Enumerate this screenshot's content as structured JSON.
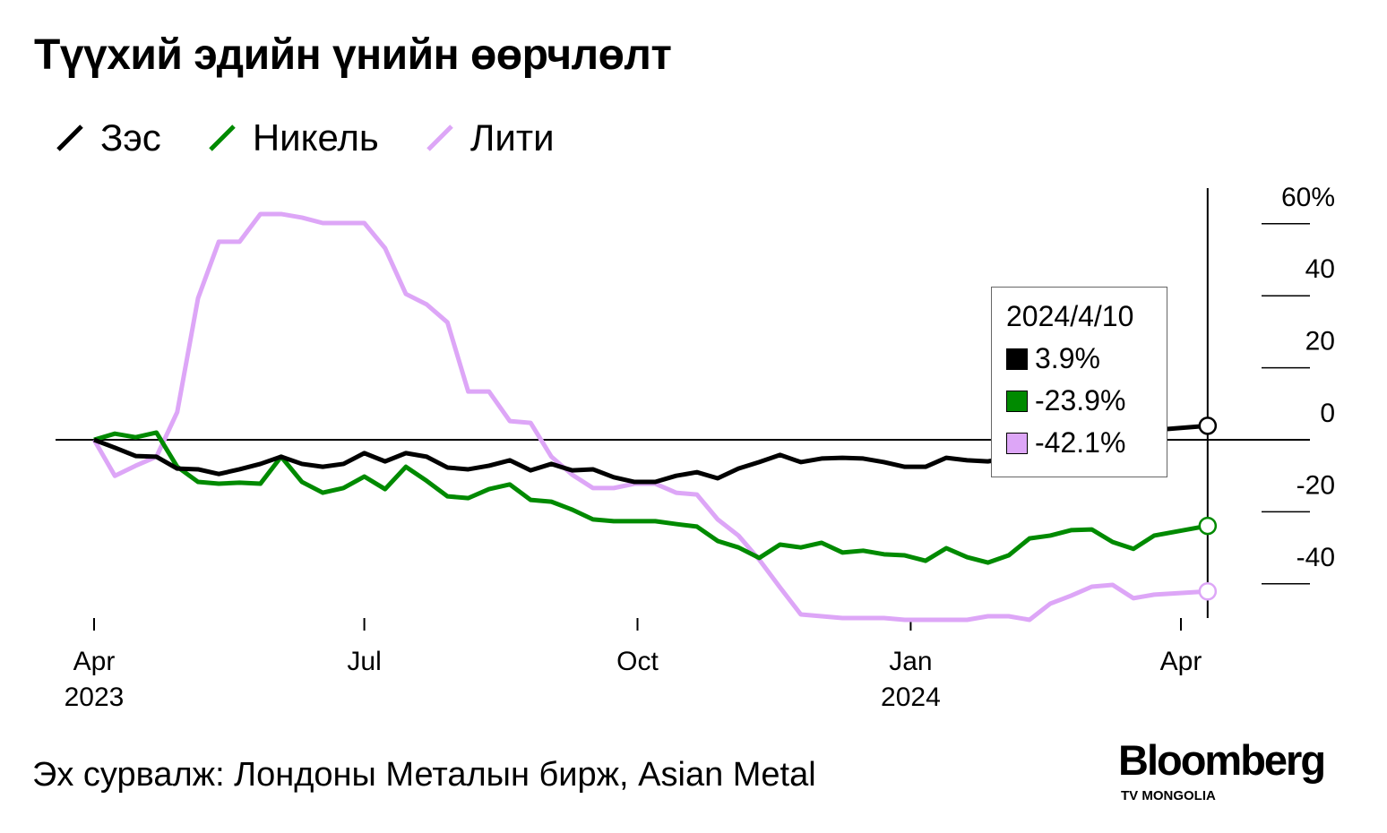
{
  "chart_data": {
    "type": "line",
    "title": "Түүхий эдийн үнийн өөрчлөлт",
    "ylabel": "",
    "xlabel": "",
    "ylim": [
      -50,
      62
    ],
    "y_ticks": [
      {
        "value": 60,
        "label": "60%"
      },
      {
        "value": 40,
        "label": "40"
      },
      {
        "value": 20,
        "label": "20"
      },
      {
        "value": 0,
        "label": "0"
      },
      {
        "value": -20,
        "label": "-20"
      },
      {
        "value": -40,
        "label": "-40"
      }
    ],
    "x_ticks": [
      {
        "date": "2023-04-01",
        "label": "Apr",
        "label2": "2023"
      },
      {
        "date": "2023-07-01",
        "label": "Jul",
        "label2": ""
      },
      {
        "date": "2023-10-01",
        "label": "Oct",
        "label2": ""
      },
      {
        "date": "2024-01-01",
        "label": "Jan",
        "label2": "2024"
      },
      {
        "date": "2024-04-01",
        "label": "Apr",
        "label2": ""
      }
    ],
    "x_start_date": "2023-04-01",
    "x_interval_days": 7,
    "x_last_date": "2024-04-10",
    "series": [
      {
        "name": "Зэс",
        "color": "#000000",
        "values": [
          0,
          -2.2,
          -4.5,
          -4.7,
          -8.0,
          -8.2,
          -9.5,
          -8.2,
          -6.7,
          -4.7,
          -6.7,
          -7.5,
          -6.7,
          -3.7,
          -6.0,
          -3.7,
          -4.7,
          -7.7,
          -8.2,
          -7.2,
          -5.7,
          -8.5,
          -6.7,
          -8.5,
          -8.2,
          -10.4,
          -11.7,
          -11.7,
          -10.0,
          -9.0,
          -10.7,
          -8.0,
          -6.2,
          -4.2,
          -6.2,
          -5.2,
          -5.0,
          -5.2,
          -6.2,
          -7.5,
          -7.5,
          -5.0,
          -5.7,
          -6.0,
          -5.0,
          -4.0,
          -3.0,
          -2.0,
          -1.5,
          -2.0,
          -1.5,
          2.7,
          3.9
        ]
      },
      {
        "name": "Никель",
        "color": "#008a00",
        "values": [
          0,
          1.7,
          0.7,
          2.0,
          -7.5,
          -11.7,
          -12.2,
          -11.9,
          -12.2,
          -4.7,
          -11.7,
          -14.7,
          -13.4,
          -10.2,
          -13.7,
          -7.5,
          -11.4,
          -15.7,
          -16.2,
          -13.7,
          -12.4,
          -16.7,
          -17.2,
          -19.4,
          -22.1,
          -22.6,
          -22.6,
          -22.6,
          -23.4,
          -24.1,
          -28.1,
          -29.9,
          -32.8,
          -29.1,
          -29.9,
          -28.6,
          -31.3,
          -30.8,
          -31.8,
          -32.1,
          -33.6,
          -30.1,
          -32.6,
          -34.1,
          -32.1,
          -27.4,
          -26.6,
          -25.1,
          -24.9,
          -28.4,
          -30.3,
          -26.6,
          -23.9
        ]
      },
      {
        "name": "Лити",
        "color": "#dda6f7",
        "values": [
          0,
          -10.0,
          -7.2,
          -4.7,
          7.7,
          39.3,
          55.0,
          55.0,
          62.7,
          62.7,
          61.7,
          60.2,
          60.2,
          60.2,
          53.2,
          40.5,
          37.6,
          32.6,
          13.4,
          13.4,
          5.2,
          4.7,
          -4.7,
          -9.7,
          -13.4,
          -13.4,
          -12.2,
          -12.2,
          -14.7,
          -15.2,
          -22.1,
          -26.6,
          -33.3,
          -41.0,
          -48.5,
          -49.0,
          -49.5,
          -49.5,
          -49.5,
          -50.0,
          -50.0,
          -50.0,
          -50.0,
          -49.0,
          -49.0,
          -50.0,
          -45.5,
          -43.3,
          -40.8,
          -40.3,
          -44.0,
          -43.0,
          -42.1
        ]
      }
    ],
    "tooltip": {
      "date": "2024/4/10",
      "values": [
        "3.9%",
        "-23.9%",
        "-42.1%"
      ]
    },
    "legend_position": "top-left"
  },
  "source": "Эх сурвалж: Лондоны Металын бирж, Asian Metal",
  "logo": {
    "name": "Bloomberg",
    "sub": "TV MONGOLIA"
  }
}
